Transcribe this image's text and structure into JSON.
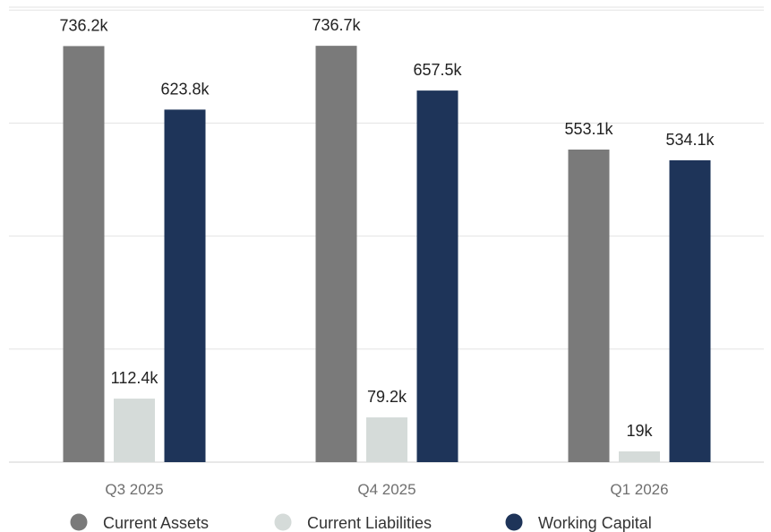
{
  "chart_data": {
    "type": "bar",
    "title": "",
    "xlabel": "",
    "ylabel": "",
    "ylim": [
      0,
      800000
    ],
    "grid": true,
    "legend_position": "bottom",
    "categories": [
      "Q3 2025",
      "Q4 2025",
      "Q1 2026"
    ],
    "series": [
      {
        "name": "Current Assets",
        "color": "#7a7a7a",
        "values": [
          736200,
          736700,
          553100
        ],
        "labels": [
          "736.2k",
          "736.7k",
          "553.1k"
        ]
      },
      {
        "name": "Current Liabilities",
        "color": "#d5dbd9",
        "values": [
          112400,
          79200,
          19000
        ],
        "labels": [
          "112.4k",
          "79.2k",
          "19k"
        ]
      },
      {
        "name": "Working Capital",
        "color": "#1e3459",
        "values": [
          623800,
          657500,
          534100
        ],
        "labels": [
          "623.8k",
          "657.5k",
          "534.1k"
        ]
      }
    ]
  }
}
